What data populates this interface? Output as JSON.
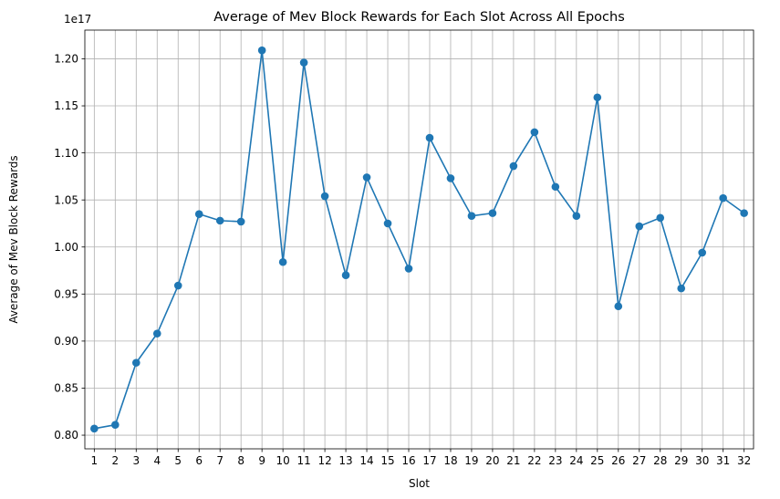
{
  "chart_data": {
    "type": "line",
    "title": "Average of Mev Block Rewards for Each Slot Across All Epochs",
    "xlabel": "Slot",
    "ylabel": "Average of Mev Block Rewards",
    "y_multiplier_label": "1e17",
    "x": [
      1,
      2,
      3,
      4,
      5,
      6,
      7,
      8,
      9,
      10,
      11,
      12,
      13,
      14,
      15,
      16,
      17,
      18,
      19,
      20,
      21,
      22,
      23,
      24,
      25,
      26,
      27,
      28,
      29,
      30,
      31,
      32
    ],
    "series": [
      {
        "values": [
          0.807,
          0.811,
          0.877,
          0.908,
          0.959,
          1.035,
          1.028,
          1.027,
          1.209,
          0.984,
          1.196,
          1.054,
          0.97,
          1.074,
          1.025,
          0.977,
          1.116,
          1.073,
          1.033,
          1.036,
          1.086,
          1.122,
          1.064,
          1.033,
          1.159,
          0.937,
          1.022,
          1.031,
          0.956,
          0.994,
          1.052,
          1.036
        ],
        "color": "#1f77b4"
      }
    ],
    "y_ticks": [
      "0.80",
      "0.85",
      "0.90",
      "0.95",
      "1.00",
      "1.05",
      "1.10",
      "1.15",
      "1.20"
    ],
    "ylim": [
      0.7855,
      1.2305
    ],
    "xlim": [
      0.55,
      32.45
    ],
    "grid": true,
    "marker": "circle"
  }
}
